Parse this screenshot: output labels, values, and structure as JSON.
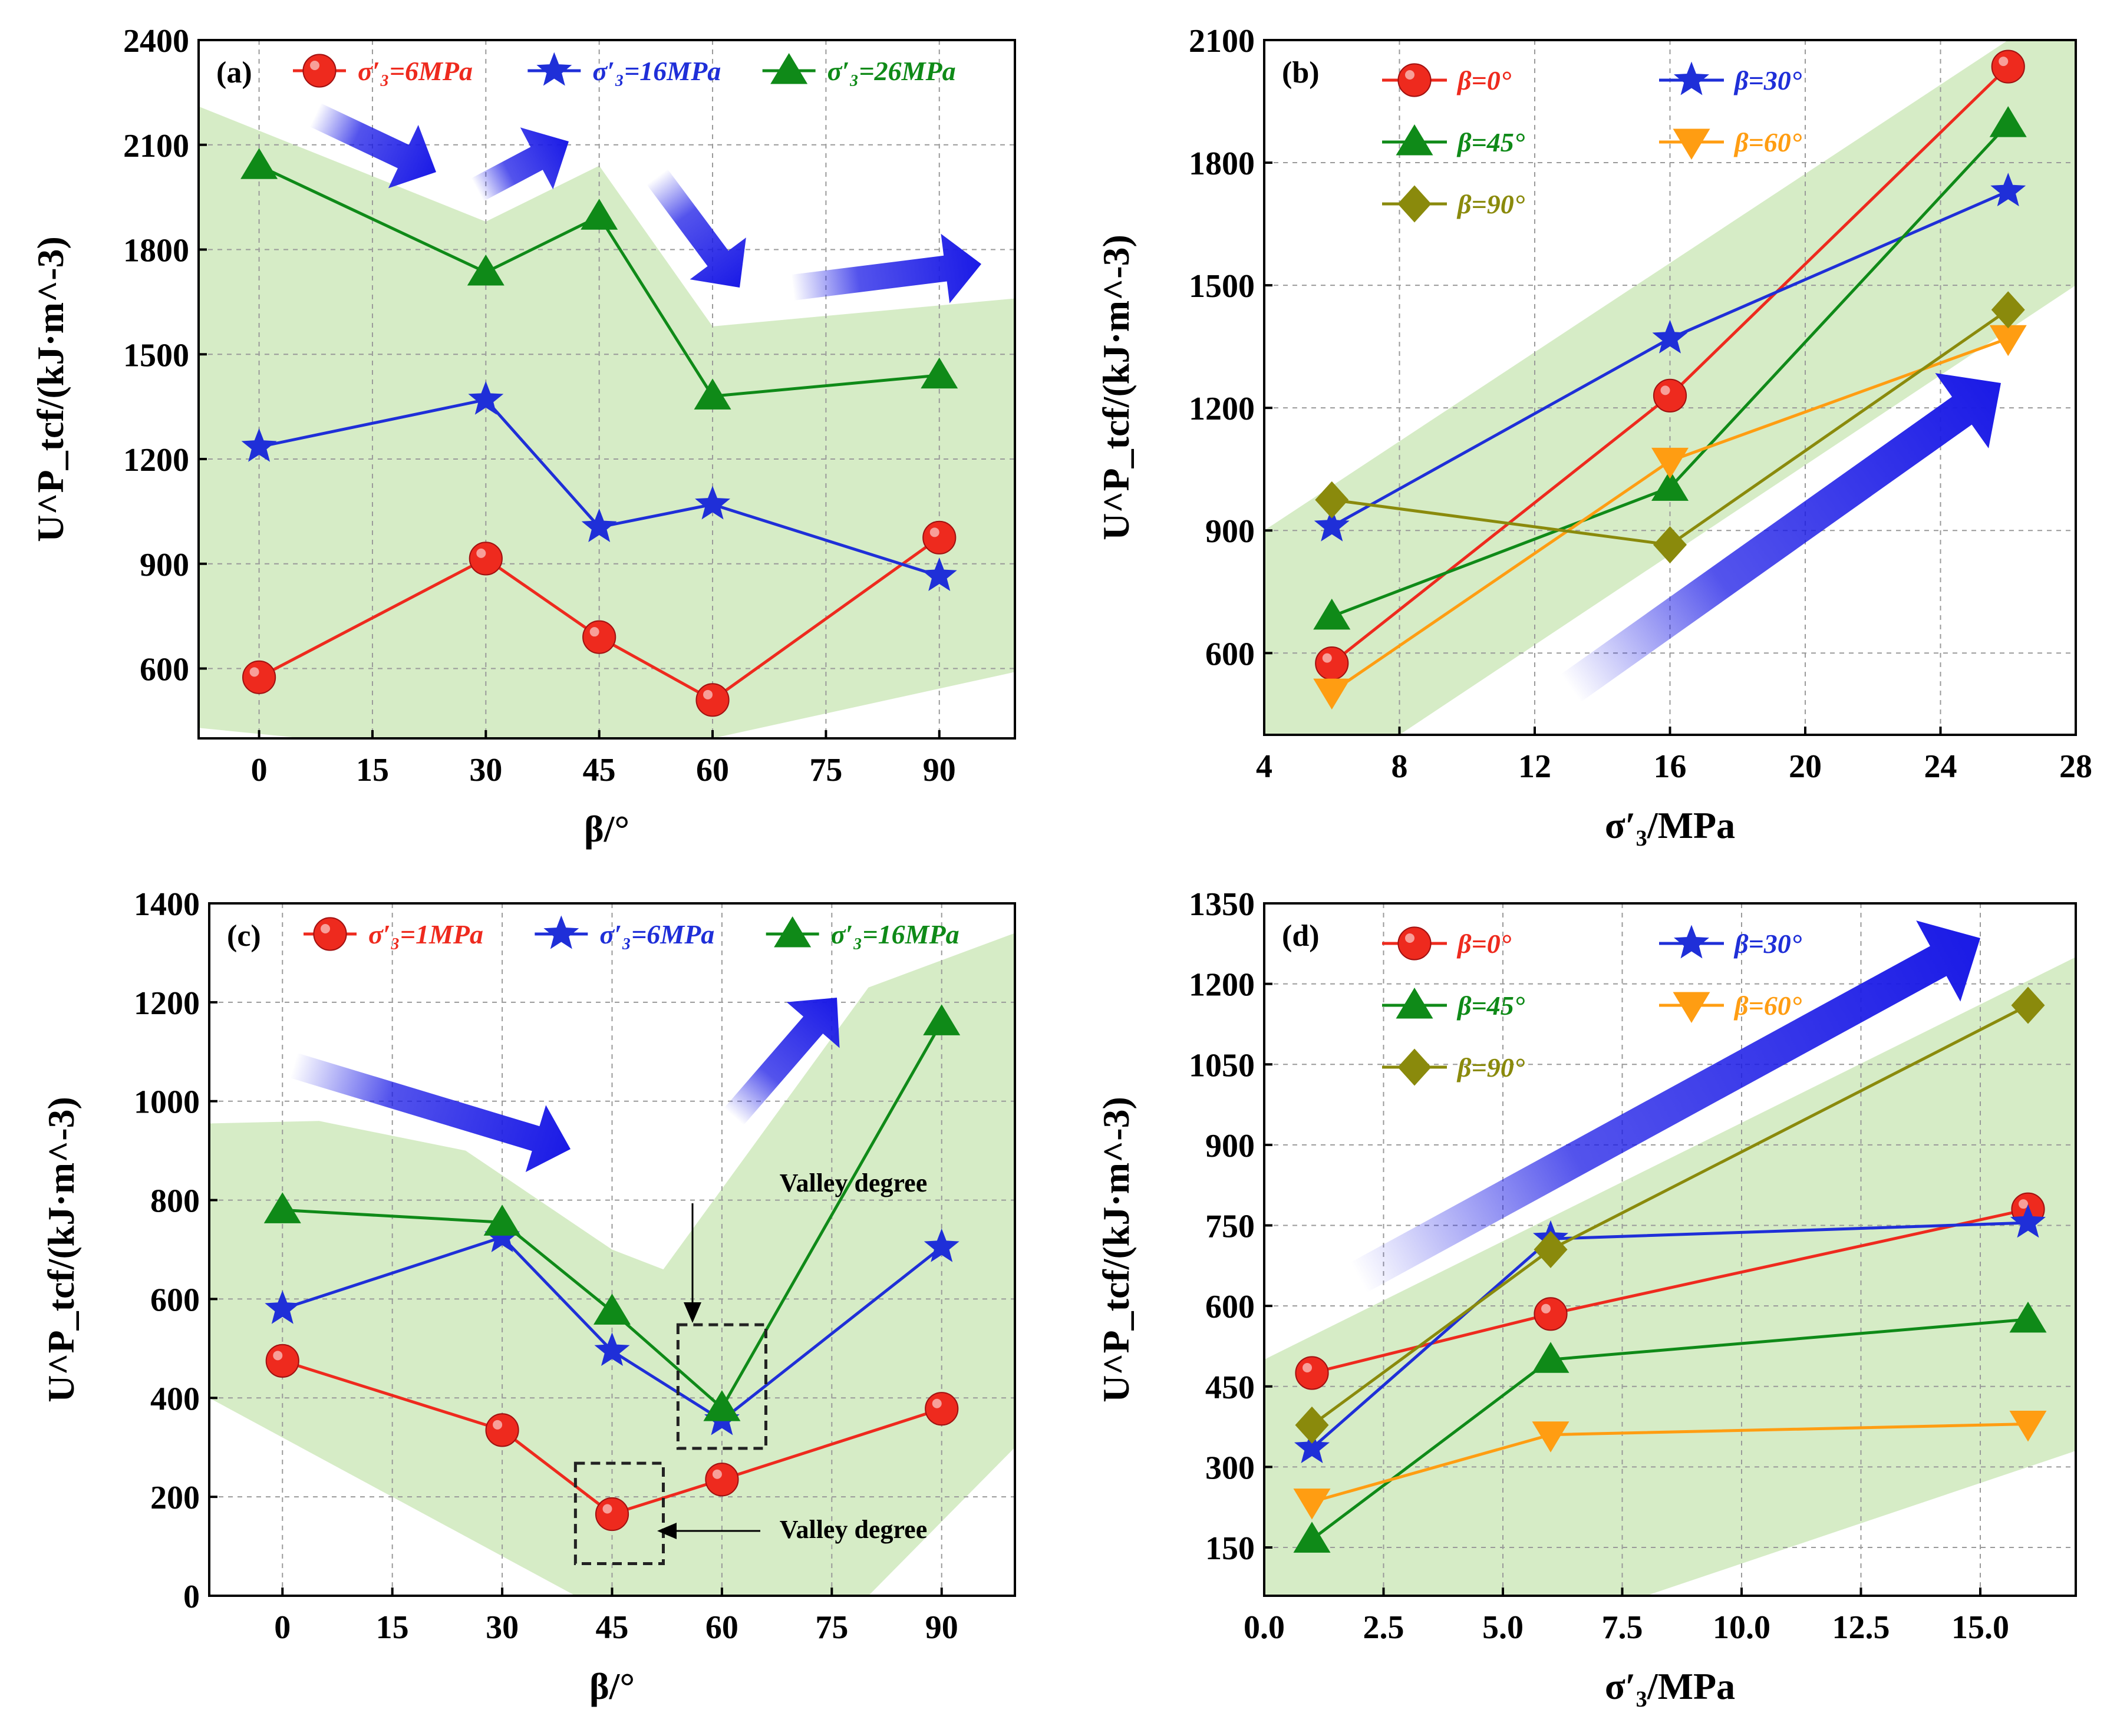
{
  "colors": {
    "red": "#ee2a1e",
    "blue": "#1f2fd8",
    "green": "#0f8a18",
    "orange": "#ff9d12",
    "olive": "#8a8a0c",
    "band": "#d6ecc6",
    "arrow": "#1a1ae6"
  },
  "chart_data": [
    {
      "panel": "(a)",
      "type": "line",
      "xlabel": "β/°",
      "ylabel": "U^P_tcf/(kJ·m^-3)",
      "xlim": [
        -8,
        100
      ],
      "ylim": [
        400,
        2400
      ],
      "xticks": [
        "0",
        "15",
        "30",
        "45",
        "60",
        "75",
        "90"
      ],
      "yticks": [
        "600",
        "900",
        "1200",
        "1500",
        "1800",
        "2100",
        "2400"
      ],
      "x": [
        0,
        30,
        45,
        60,
        90
      ],
      "series": [
        {
          "name": "σ′₃=6MPa",
          "color": "red",
          "marker": "circle",
          "values": [
            575,
            915,
            690,
            510,
            975
          ]
        },
        {
          "name": "σ′₃=16MPa",
          "color": "blue",
          "marker": "star",
          "values": [
            1235,
            1370,
            1005,
            1070,
            865
          ]
        },
        {
          "name": "σ′₃=26MPa",
          "color": "green",
          "marker": "triangle",
          "values": [
            2040,
            1735,
            1895,
            1380,
            1440
          ]
        }
      ],
      "annotations": [],
      "legend": {
        "position": "top",
        "columns": 3
      }
    },
    {
      "panel": "(b)",
      "type": "line",
      "xlabel": "σ′₃/MPa",
      "ylabel": "U^P_tcf/(kJ·m^-3)",
      "xlim": [
        4,
        28
      ],
      "ylim": [
        400,
        2100
      ],
      "xticks": [
        "4",
        "8",
        "12",
        "16",
        "20",
        "24",
        "28"
      ],
      "yticks": [
        "600",
        "900",
        "1200",
        "1500",
        "1800",
        "2100"
      ],
      "x": [
        6,
        16,
        26
      ],
      "series": [
        {
          "name": "β=0°",
          "color": "red",
          "marker": "circle",
          "values": [
            575,
            1230,
            2035
          ]
        },
        {
          "name": "β=30°",
          "color": "blue",
          "marker": "star",
          "values": [
            910,
            1370,
            1730
          ]
        },
        {
          "name": "β=45°",
          "color": "green",
          "marker": "triangle",
          "values": [
            690,
            1005,
            1895
          ]
        },
        {
          "name": "β=60°",
          "color": "orange",
          "marker": "triangle-down",
          "values": [
            505,
            1070,
            1370
          ]
        },
        {
          "name": "β=90°",
          "color": "olive",
          "marker": "diamond",
          "values": [
            975,
            865,
            1440
          ]
        }
      ],
      "annotations": [],
      "legend": {
        "position": "top-left",
        "columns": 2
      }
    },
    {
      "panel": "(c)",
      "type": "line",
      "xlabel": "β/°",
      "ylabel": "U^P_tcf/(kJ·m^-3)",
      "xlim": [
        -10,
        100
      ],
      "ylim": [
        0,
        1400
      ],
      "xticks": [
        "0",
        "15",
        "30",
        "45",
        "60",
        "75",
        "90"
      ],
      "yticks": [
        "0",
        "200",
        "400",
        "600",
        "800",
        "1000",
        "1200",
        "1400"
      ],
      "x": [
        0,
        30,
        45,
        60,
        90
      ],
      "series": [
        {
          "name": "σ′₃=1MPa",
          "color": "red",
          "marker": "circle",
          "values": [
            475,
            335,
            165,
            235,
            378
          ]
        },
        {
          "name": "σ′₃=6MPa",
          "color": "blue",
          "marker": "star",
          "values": [
            580,
            725,
            495,
            355,
            705
          ]
        },
        {
          "name": "σ′₃=16MPa",
          "color": "green",
          "marker": "triangle",
          "values": [
            780,
            755,
            575,
            380,
            1160
          ]
        }
      ],
      "annotations": [
        "Valley degree",
        "Valley degree"
      ],
      "legend": {
        "position": "top",
        "columns": 3
      }
    },
    {
      "panel": "(d)",
      "type": "line",
      "xlabel": "σ′₃/MPa",
      "ylabel": "U^P_tcf/(kJ·m^-3)",
      "xlim": [
        0,
        17
      ],
      "ylim": [
        60,
        1350
      ],
      "xticks": [
        "0.0",
        "2.5",
        "5.0",
        "7.5",
        "10.0",
        "12.5",
        "15.0"
      ],
      "yticks": [
        "150",
        "300",
        "450",
        "600",
        "750",
        "900",
        "1050",
        "1200",
        "1350"
      ],
      "x": [
        1,
        6,
        16
      ],
      "series": [
        {
          "name": "β=0°",
          "color": "red",
          "marker": "circle",
          "values": [
            475,
            585,
            780
          ]
        },
        {
          "name": "β=30°",
          "color": "blue",
          "marker": "star",
          "values": [
            335,
            725,
            755
          ]
        },
        {
          "name": "β=45°",
          "color": "green",
          "marker": "triangle",
          "values": [
            165,
            500,
            575
          ]
        },
        {
          "name": "β=60°",
          "color": "orange",
          "marker": "triangle-down",
          "values": [
            235,
            360,
            380
          ]
        },
        {
          "name": "β=90°",
          "color": "olive",
          "marker": "diamond",
          "values": [
            378,
            705,
            1160
          ]
        }
      ],
      "annotations": [],
      "legend": {
        "position": "top-left",
        "columns": 2
      }
    }
  ]
}
